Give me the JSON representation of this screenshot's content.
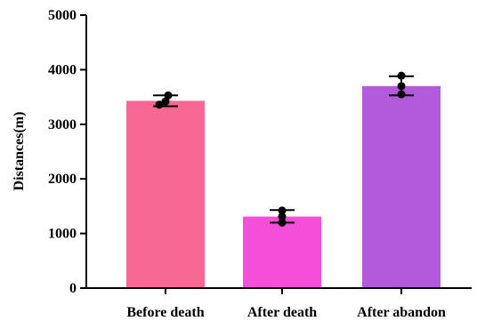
{
  "chart_data": {
    "type": "bar",
    "title": "",
    "xlabel": "",
    "ylabel": "Distances(m)",
    "ylim": [
      0,
      5000
    ],
    "yticks": [
      0,
      1000,
      2000,
      3000,
      4000,
      5000
    ],
    "grid": false,
    "legend": "none",
    "categories": [
      "Before death",
      "After death",
      "After abandon"
    ],
    "values": [
      3430,
      1310,
      3700
    ],
    "errors": [
      {
        "low": 3330,
        "high": 3530
      },
      {
        "low": 1200,
        "high": 1430
      },
      {
        "low": 3530,
        "high": 3880
      }
    ],
    "points": [
      [
        3360,
        3420,
        3530
      ],
      [
        1200,
        1310,
        1420
      ],
      [
        3550,
        3700,
        3890
      ]
    ],
    "colors": [
      "#f76895",
      "#f54ed9",
      "#b25ad9"
    ]
  }
}
